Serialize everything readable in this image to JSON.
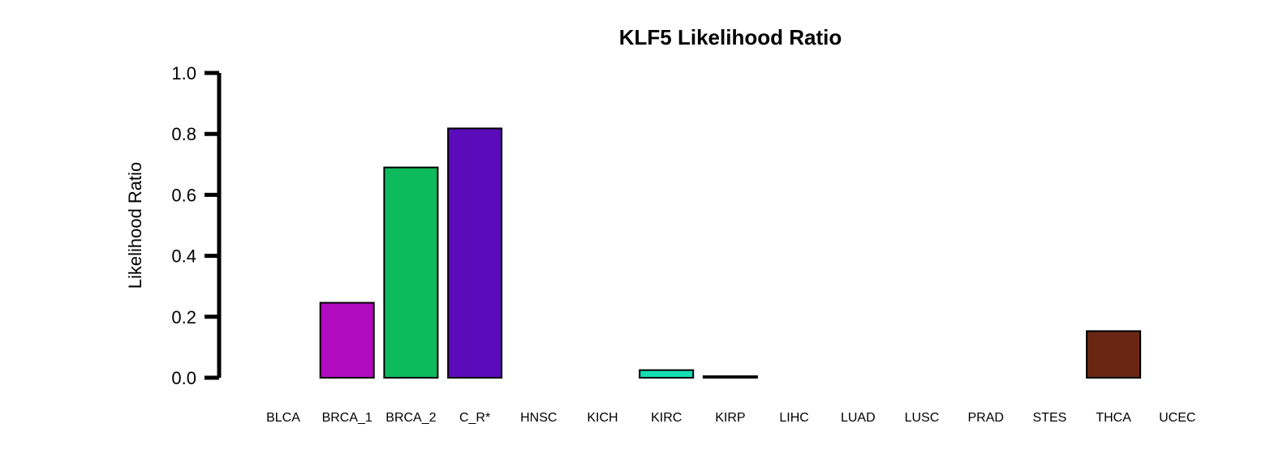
{
  "chart_data": {
    "type": "bar",
    "title": "KLF5 Likelihood Ratio",
    "xlabel": "",
    "ylabel": "Likelihood Ratio",
    "ylim": [
      0,
      1
    ],
    "yticks": [
      "0.0",
      "0.2",
      "0.4",
      "0.6",
      "0.8",
      "1.0"
    ],
    "grid": false,
    "categories": [
      "BLCA",
      "BRCA_1",
      "BRCA_2",
      "C_R*",
      "HNSC",
      "KICH",
      "KIRC",
      "KIRP",
      "LIHC",
      "LUAD",
      "LUSC",
      "PRAD",
      "STES",
      "THCA",
      "UCEC"
    ],
    "values": [
      0,
      0.246,
      0.69,
      0.818,
      0,
      0,
      0.025,
      0.005,
      0,
      0,
      0,
      0,
      0,
      0.153,
      0
    ],
    "colors": [
      "#000000",
      "#B10BBF",
      "#0DBA5C",
      "#5B0BB9",
      "#000000",
      "#000000",
      "#14DDB4",
      "#000000",
      "#000000",
      "#000000",
      "#000000",
      "#000000",
      "#000000",
      "#692713",
      "#000000"
    ]
  }
}
